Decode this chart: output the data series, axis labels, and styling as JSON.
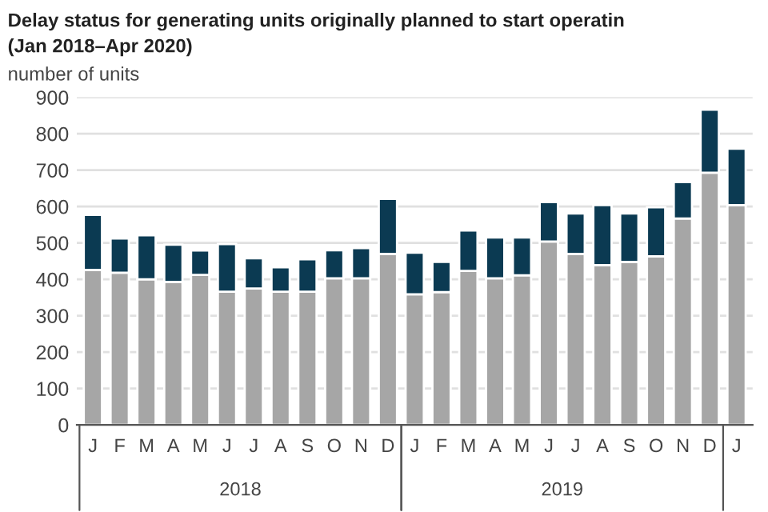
{
  "chart_data": {
    "type": "bar",
    "stacked": true,
    "title": "Delay status for generating units originally planned to start operatin",
    "subtitle": "(Jan 2018–Apr 2020)",
    "ylabel": "number of units",
    "categories": [
      "J",
      "F",
      "M",
      "A",
      "M",
      "J",
      "J",
      "A",
      "S",
      "O",
      "N",
      "D",
      "J",
      "F",
      "M",
      "A",
      "M",
      "J",
      "J",
      "A",
      "S",
      "O",
      "N",
      "D",
      "J"
    ],
    "series": [
      {
        "color": "#a6a6a6",
        "values": [
          426,
          418,
          400,
          393,
          412,
          366,
          375,
          366,
          366,
          403,
          403,
          470,
          359,
          365,
          423,
          403,
          411,
          504,
          470,
          439,
          448,
          463,
          567,
          693,
          604
        ]
      },
      {
        "color": "#0b3a52",
        "values": [
          151,
          94,
          121,
          102,
          67,
          131,
          83,
          67,
          89,
          77,
          83,
          151,
          114,
          83,
          111,
          112,
          104,
          108,
          111,
          165,
          133,
          135,
          100,
          173,
          155
        ]
      }
    ],
    "annotations": [
      "2018",
      "2019"
    ],
    "ylim": [
      0,
      900
    ],
    "yticks": [
      0,
      100,
      200,
      300,
      400,
      500,
      600,
      700,
      800,
      900
    ],
    "grid": "y"
  }
}
